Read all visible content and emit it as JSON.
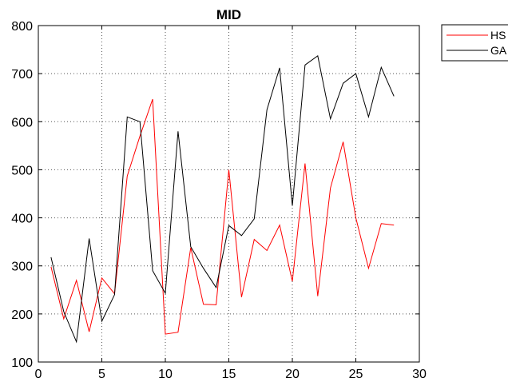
{
  "chart_data": {
    "type": "line",
    "title": "MID",
    "xlabel": "",
    "ylabel": "",
    "xlim": [
      0,
      30
    ],
    "ylim": [
      100,
      800
    ],
    "xticks": [
      0,
      5,
      10,
      15,
      20,
      25,
      30
    ],
    "yticks": [
      100,
      200,
      300,
      400,
      500,
      600,
      700,
      800
    ],
    "grid": true,
    "legend_position": "top-right, outside plot",
    "series": [
      {
        "name": "HS",
        "color": "#ff0000",
        "x": [
          1,
          2,
          3,
          4,
          5,
          6,
          7,
          8,
          9,
          10,
          11,
          12,
          13,
          14,
          15,
          16,
          17,
          18,
          19,
          20,
          21,
          22,
          23,
          24,
          25,
          26,
          27,
          28
        ],
        "y": [
          298,
          190,
          270,
          163,
          275,
          242,
          487,
          570,
          647,
          158,
          162,
          338,
          220,
          219,
          500,
          235,
          355,
          332,
          385,
          268,
          513,
          237,
          462,
          558,
          400,
          295,
          388,
          385
        ]
      },
      {
        "name": "GA",
        "color": "#000000",
        "x": [
          1,
          2,
          3,
          4,
          5,
          6,
          7,
          8,
          9,
          10,
          11,
          12,
          13,
          14,
          15,
          16,
          17,
          18,
          19,
          20,
          21,
          22,
          23,
          24,
          25,
          26,
          27,
          28
        ],
        "y": [
          318,
          205,
          142,
          357,
          185,
          240,
          610,
          600,
          290,
          243,
          580,
          340,
          295,
          255,
          384,
          363,
          398,
          625,
          712,
          425,
          718,
          737,
          606,
          680,
          700,
          610,
          713,
          653
        ]
      }
    ]
  }
}
